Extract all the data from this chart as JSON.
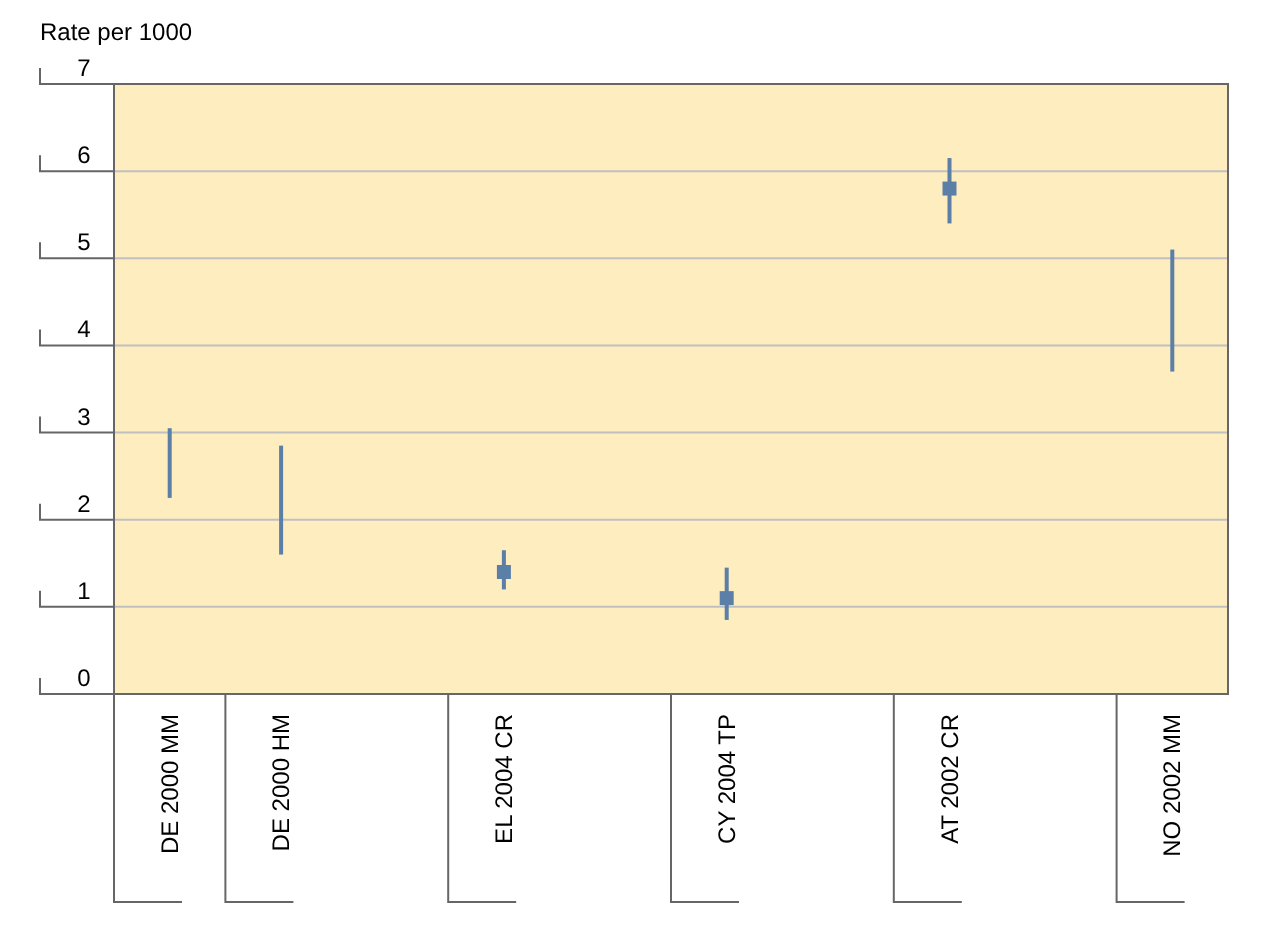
{
  "chart_data": {
    "type": "bar",
    "ylabel": "Rate per 1000",
    "categories": [
      "DE 2000 MM",
      "DE 2000 HM",
      null,
      "EL 2004 CR",
      null,
      "CY 2004 TP",
      null,
      "AT 2002 CR",
      null,
      "NO 2002 MM"
    ],
    "series": [
      {
        "color": "#5b7fa6",
        "base": [
          2.25,
          1.6,
          null,
          1.2,
          null,
          0.85,
          null,
          5.4,
          null,
          3.7
        ],
        "values": [
          0.8,
          1.25,
          null,
          0.45,
          null,
          0.6,
          null,
          0.75,
          null,
          1.4
        ]
      },
      {
        "type": "scatter",
        "color": "#5b7fa6",
        "marker": "square",
        "values": [
          null,
          null,
          null,
          1.4,
          null,
          1.1,
          null,
          5.8,
          null,
          null
        ]
      }
    ],
    "ylim": [
      0,
      7
    ],
    "yticks": [
      0,
      1,
      2,
      3,
      4,
      5,
      6,
      7
    ],
    "grid": "y"
  }
}
